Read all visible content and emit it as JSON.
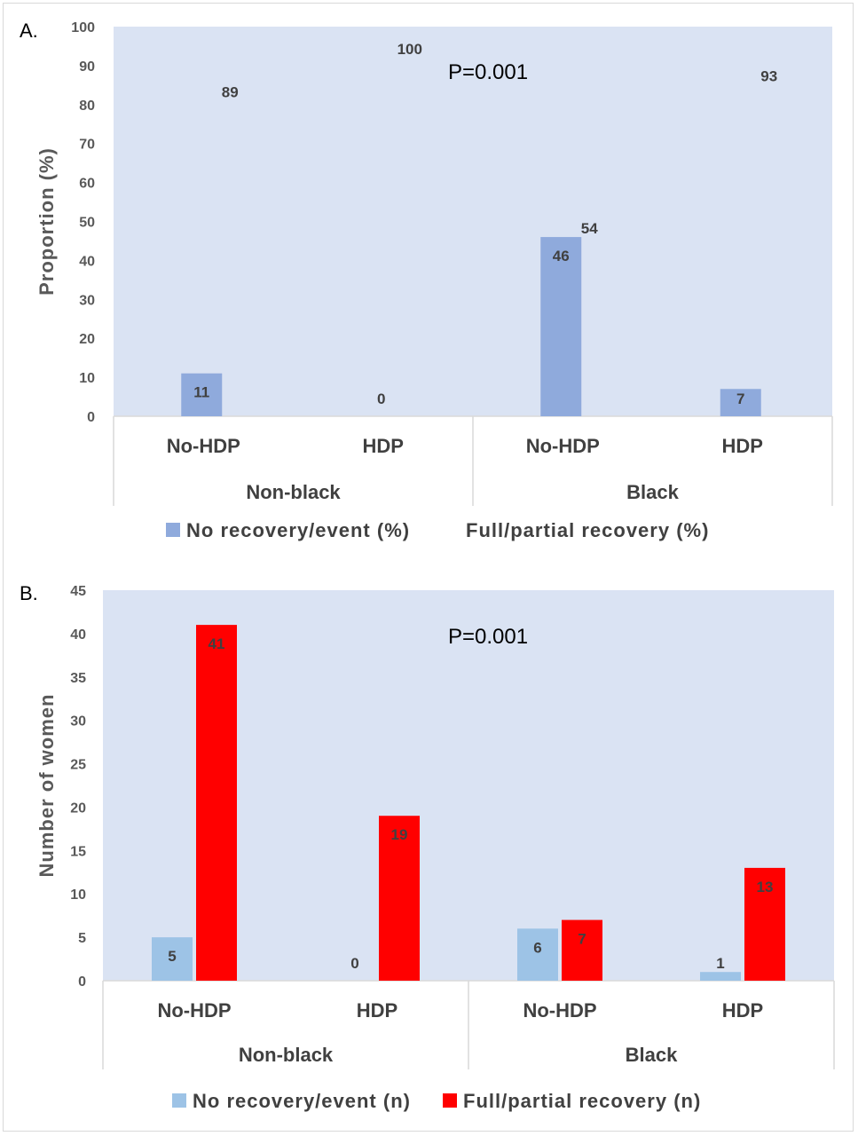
{
  "chart_data": [
    {
      "panel": "A.",
      "type": "bar",
      "group_categories": [
        "Non-black",
        "Black"
      ],
      "categories": [
        "No-HDP",
        "HDP",
        "No-HDP",
        "HDP"
      ],
      "ylabel": "Proportion (%)",
      "ylim": [
        0,
        100
      ],
      "yticks": [
        0,
        10,
        20,
        30,
        40,
        50,
        60,
        70,
        80,
        90,
        100
      ],
      "annotation": "P=0.001",
      "grid": false,
      "legend_position": "bottom",
      "series": [
        {
          "name": "No recovery/event (%)",
          "color": "#8faadc",
          "values": [
            11,
            0,
            46,
            7
          ],
          "labels": [
            "11",
            "0",
            "46",
            "7"
          ]
        },
        {
          "name": "Full/partial recovery (%)",
          "color": "#dae3f3",
          "values": [
            89,
            100,
            54,
            93
          ],
          "labels": [
            "89",
            "100",
            "54",
            "93"
          ]
        }
      ],
      "plot_background": "#dae3f3"
    },
    {
      "panel": "B.",
      "type": "bar",
      "group_categories": [
        "Non-black",
        "Black"
      ],
      "categories": [
        "No-HDP",
        "HDP",
        "No-HDP",
        "HDP"
      ],
      "ylabel": "Number of women",
      "ylim": [
        0,
        45
      ],
      "yticks": [
        0,
        5,
        10,
        15,
        20,
        25,
        30,
        35,
        40,
        45
      ],
      "annotation": "P=0.001",
      "grid": false,
      "legend_position": "bottom",
      "series": [
        {
          "name": "No recovery/event (n)",
          "color": "#9dc3e6",
          "values": [
            5,
            0,
            6,
            1
          ],
          "labels": [
            "5",
            "0",
            "6",
            "1"
          ]
        },
        {
          "name": "Full/partial recovery (n)",
          "color": "#ff0000",
          "values": [
            41,
            19,
            7,
            13
          ],
          "labels": [
            "41",
            "19",
            "7",
            "13"
          ]
        }
      ],
      "plot_background": "#dae3f3"
    }
  ]
}
